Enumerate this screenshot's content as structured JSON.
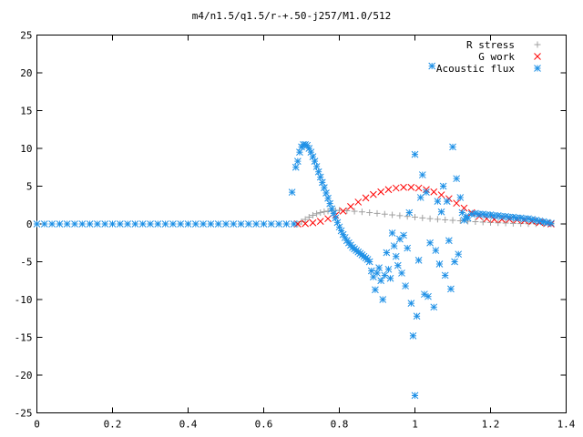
{
  "chart_data": {
    "type": "scatter",
    "title": "m4/n1.5/q1.5/r-+.50-j257/M1.0/512",
    "xlabel": "",
    "ylabel": "",
    "xlim": [
      0,
      1.4
    ],
    "ylim": [
      -25,
      25
    ],
    "x_ticks": [
      0,
      0.2,
      0.4,
      0.6,
      0.8,
      1,
      1.2,
      1.4
    ],
    "x_tick_labels": [
      "0",
      "0.2",
      "0.4",
      "0.6",
      "0.8",
      "1",
      "1.2",
      "1.4"
    ],
    "y_ticks": [
      -25,
      -20,
      -15,
      -10,
      -5,
      0,
      5,
      10,
      15,
      20,
      25
    ],
    "y_tick_labels": [
      "-25",
      "-20",
      "-15",
      "-10",
      "-5",
      "0",
      "5",
      "10",
      "15",
      "20",
      "25"
    ],
    "grid": false,
    "legend_position": "top-right",
    "series": [
      {
        "name": "R stress",
        "marker": "plus",
        "color": "#a0a0a0",
        "points": [
          [
            0.69,
            0.0
          ],
          [
            0.7,
            0.3
          ],
          [
            0.71,
            0.6
          ],
          [
            0.72,
            0.9
          ],
          [
            0.73,
            1.15
          ],
          [
            0.74,
            1.35
          ],
          [
            0.75,
            1.5
          ],
          [
            0.76,
            1.62
          ],
          [
            0.77,
            1.7
          ],
          [
            0.78,
            1.75
          ],
          [
            0.79,
            1.78
          ],
          [
            0.8,
            1.8
          ],
          [
            0.82,
            1.75
          ],
          [
            0.84,
            1.68
          ],
          [
            0.86,
            1.6
          ],
          [
            0.88,
            1.5
          ],
          [
            0.9,
            1.4
          ],
          [
            0.92,
            1.3
          ],
          [
            0.94,
            1.2
          ],
          [
            0.96,
            1.1
          ],
          [
            0.98,
            1.0
          ],
          [
            1.0,
            0.9
          ],
          [
            1.02,
            0.8
          ],
          [
            1.04,
            0.7
          ],
          [
            1.06,
            0.62
          ],
          [
            1.08,
            0.55
          ],
          [
            1.1,
            0.48
          ],
          [
            1.12,
            0.42
          ],
          [
            1.14,
            0.36
          ],
          [
            1.16,
            0.3
          ],
          [
            1.18,
            0.25
          ],
          [
            1.2,
            0.2
          ],
          [
            1.22,
            0.15
          ],
          [
            1.24,
            0.12
          ],
          [
            1.26,
            0.08
          ],
          [
            1.28,
            0.05
          ],
          [
            1.3,
            0.03
          ],
          [
            1.32,
            0.02
          ],
          [
            1.34,
            0.01
          ],
          [
            1.36,
            0.0
          ]
        ]
      },
      {
        "name": "G work",
        "marker": "cross",
        "color": "#ff0000",
        "points": [
          [
            0.69,
            0.0
          ],
          [
            0.71,
            0.05
          ],
          [
            0.73,
            0.15
          ],
          [
            0.75,
            0.35
          ],
          [
            0.77,
            0.7
          ],
          [
            0.79,
            1.15
          ],
          [
            0.81,
            1.7
          ],
          [
            0.83,
            2.3
          ],
          [
            0.85,
            2.9
          ],
          [
            0.87,
            3.45
          ],
          [
            0.89,
            3.9
          ],
          [
            0.91,
            4.25
          ],
          [
            0.93,
            4.55
          ],
          [
            0.95,
            4.75
          ],
          [
            0.97,
            4.85
          ],
          [
            0.99,
            4.85
          ],
          [
            1.01,
            4.75
          ],
          [
            1.03,
            4.55
          ],
          [
            1.05,
            4.25
          ],
          [
            1.07,
            3.85
          ],
          [
            1.09,
            3.35
          ],
          [
            1.11,
            2.75
          ],
          [
            1.13,
            2.1
          ],
          [
            1.15,
            1.5
          ],
          [
            1.17,
            1.0
          ],
          [
            1.19,
            0.7
          ],
          [
            1.21,
            0.6
          ],
          [
            1.23,
            0.6
          ],
          [
            1.25,
            0.6
          ],
          [
            1.27,
            0.55
          ],
          [
            1.29,
            0.45
          ],
          [
            1.31,
            0.35
          ],
          [
            1.33,
            0.2
          ],
          [
            1.35,
            0.1
          ],
          [
            1.36,
            0.0
          ]
        ]
      },
      {
        "name": "Acoustic flux",
        "marker": "star",
        "color": "#1e90e6",
        "points": [
          [
            0.0,
            0.0
          ],
          [
            0.02,
            0.0
          ],
          [
            0.04,
            0.0
          ],
          [
            0.06,
            0.0
          ],
          [
            0.08,
            0.0
          ],
          [
            0.1,
            0.0
          ],
          [
            0.12,
            0.0
          ],
          [
            0.14,
            0.0
          ],
          [
            0.16,
            0.0
          ],
          [
            0.18,
            0.0
          ],
          [
            0.2,
            0.0
          ],
          [
            0.22,
            0.0
          ],
          [
            0.24,
            0.0
          ],
          [
            0.26,
            0.0
          ],
          [
            0.28,
            0.0
          ],
          [
            0.3,
            0.0
          ],
          [
            0.32,
            0.0
          ],
          [
            0.34,
            0.0
          ],
          [
            0.36,
            0.0
          ],
          [
            0.38,
            0.0
          ],
          [
            0.4,
            0.0
          ],
          [
            0.42,
            0.0
          ],
          [
            0.44,
            0.0
          ],
          [
            0.46,
            0.0
          ],
          [
            0.48,
            0.0
          ],
          [
            0.5,
            0.0
          ],
          [
            0.52,
            0.0
          ],
          [
            0.54,
            0.0
          ],
          [
            0.56,
            0.0
          ],
          [
            0.58,
            0.0
          ],
          [
            0.6,
            0.0
          ],
          [
            0.62,
            0.0
          ],
          [
            0.64,
            0.0
          ],
          [
            0.66,
            0.0
          ],
          [
            0.68,
            0.0
          ],
          [
            0.675,
            4.2
          ],
          [
            0.685,
            7.5
          ],
          [
            0.69,
            8.3
          ],
          [
            0.695,
            9.5
          ],
          [
            0.7,
            10.2
          ],
          [
            0.705,
            10.5
          ],
          [
            0.71,
            10.5
          ],
          [
            0.715,
            10.4
          ],
          [
            0.72,
            10.0
          ],
          [
            0.725,
            9.5
          ],
          [
            0.73,
            8.9
          ],
          [
            0.735,
            8.3
          ],
          [
            0.74,
            7.6
          ],
          [
            0.745,
            6.9
          ],
          [
            0.75,
            6.2
          ],
          [
            0.755,
            5.5
          ],
          [
            0.76,
            4.8
          ],
          [
            0.765,
            4.1
          ],
          [
            0.77,
            3.4
          ],
          [
            0.775,
            2.7
          ],
          [
            0.78,
            2.0
          ],
          [
            0.785,
            1.4
          ],
          [
            0.79,
            0.8
          ],
          [
            0.795,
            0.2
          ],
          [
            0.8,
            -0.4
          ],
          [
            0.805,
            -0.9
          ],
          [
            0.81,
            -1.4
          ],
          [
            0.815,
            -1.8
          ],
          [
            0.82,
            -2.2
          ],
          [
            0.825,
            -2.5
          ],
          [
            0.83,
            -2.8
          ],
          [
            0.835,
            -3.1
          ],
          [
            0.84,
            -3.3
          ],
          [
            0.845,
            -3.5
          ],
          [
            0.85,
            -3.7
          ],
          [
            0.855,
            -3.9
          ],
          [
            0.86,
            -4.1
          ],
          [
            0.865,
            -4.3
          ],
          [
            0.87,
            -4.5
          ],
          [
            0.875,
            -4.7
          ],
          [
            0.88,
            -5.0
          ],
          [
            0.885,
            -6.2
          ],
          [
            0.89,
            -7.0
          ],
          [
            0.895,
            -8.7
          ],
          [
            0.9,
            -6.5
          ],
          [
            0.905,
            -5.8
          ],
          [
            0.91,
            -7.5
          ],
          [
            0.915,
            -10.0
          ],
          [
            0.92,
            -6.8
          ],
          [
            0.925,
            -3.8
          ],
          [
            0.93,
            -6.0
          ],
          [
            0.935,
            -7.2
          ],
          [
            0.94,
            -1.2
          ],
          [
            0.945,
            -2.9
          ],
          [
            0.95,
            -4.3
          ],
          [
            0.955,
            -5.5
          ],
          [
            0.96,
            -2.0
          ],
          [
            0.965,
            -6.5
          ],
          [
            0.97,
            -1.5
          ],
          [
            0.975,
            -8.2
          ],
          [
            0.98,
            -3.2
          ],
          [
            0.985,
            1.5
          ],
          [
            0.99,
            -10.5
          ],
          [
            0.995,
            -14.8
          ],
          [
            1.0,
            9.2
          ],
          [
            1.005,
            -12.2
          ],
          [
            1.01,
            -4.8
          ],
          [
            1.015,
            3.5
          ],
          [
            1.02,
            6.5
          ],
          [
            1.025,
            -9.3
          ],
          [
            1.03,
            4.2
          ],
          [
            1.035,
            -9.6
          ],
          [
            1.04,
            -2.5
          ],
          [
            1.045,
            20.9
          ],
          [
            1.05,
            -11.0
          ],
          [
            1.055,
            -3.5
          ],
          [
            1.06,
            3.0
          ],
          [
            1.065,
            -5.3
          ],
          [
            1.07,
            1.6
          ],
          [
            1.075,
            5.0
          ],
          [
            1.08,
            -6.8
          ],
          [
            1.085,
            3.0
          ],
          [
            1.09,
            -2.2
          ],
          [
            1.095,
            -8.6
          ],
          [
            1.1,
            10.2
          ],
          [
            1.105,
            -5.0
          ],
          [
            1.11,
            6.0
          ],
          [
            1.115,
            -4.0
          ],
          [
            1.12,
            3.5
          ],
          [
            1.125,
            1.5
          ],
          [
            1.13,
            0.5
          ],
          [
            1.135,
            1.0
          ],
          [
            1.14,
            0.8
          ],
          [
            1.15,
            1.3
          ],
          [
            1.16,
            1.4
          ],
          [
            1.17,
            1.3
          ],
          [
            1.18,
            1.3
          ],
          [
            1.19,
            1.2
          ],
          [
            1.2,
            1.2
          ],
          [
            1.21,
            1.1
          ],
          [
            1.22,
            1.1
          ],
          [
            1.23,
            1.0
          ],
          [
            1.24,
            1.0
          ],
          [
            1.25,
            0.9
          ],
          [
            1.26,
            0.9
          ],
          [
            1.27,
            0.8
          ],
          [
            1.28,
            0.8
          ],
          [
            1.29,
            0.7
          ],
          [
            1.3,
            0.7
          ],
          [
            1.31,
            0.6
          ],
          [
            1.32,
            0.5
          ],
          [
            1.33,
            0.4
          ],
          [
            1.34,
            0.3
          ],
          [
            1.35,
            0.2
          ],
          [
            1.36,
            0.1
          ],
          [
            1.0,
            -22.7
          ]
        ]
      }
    ]
  }
}
